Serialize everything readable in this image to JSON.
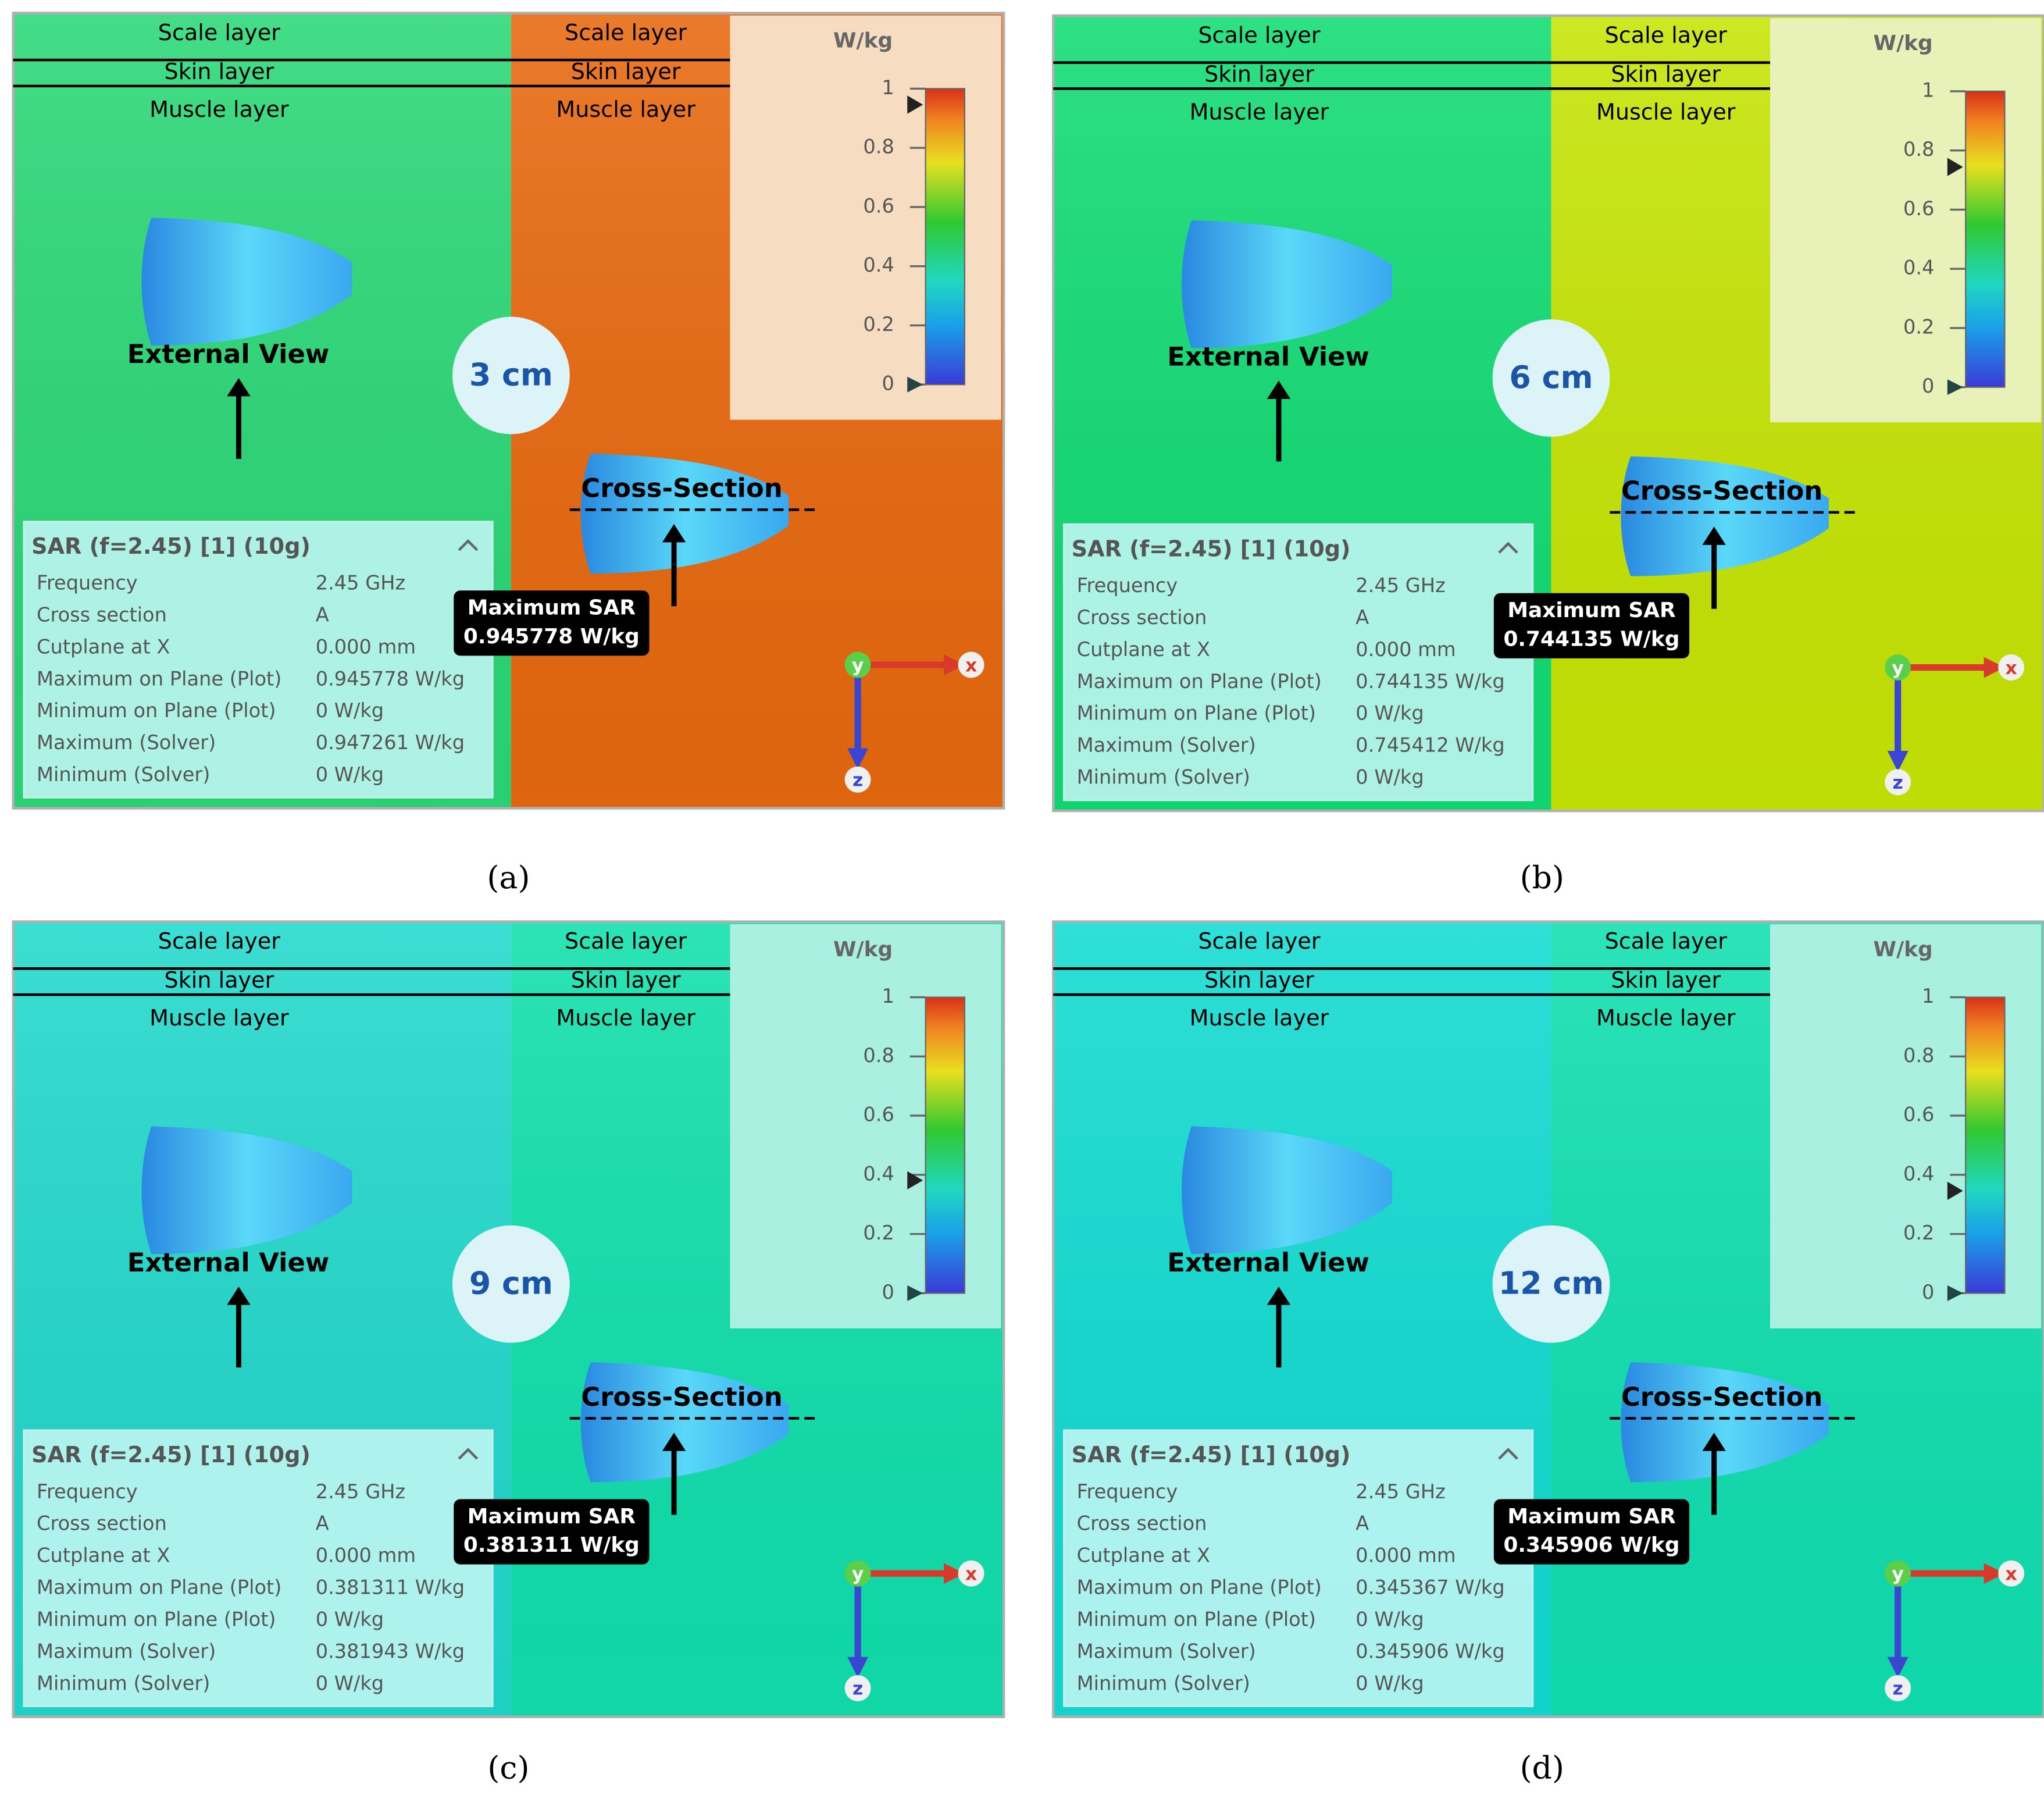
{
  "panels": [
    {
      "label": "(a)",
      "distance": "3 cm",
      "left_layers": [
        "Scale layer",
        "Skin layer",
        "Muscle layer"
      ],
      "right_layers": [
        "Scale layer",
        "Skin layer",
        "Muscle layer"
      ],
      "external_view": "External View",
      "cross_section": "Cross-Section",
      "colors": {
        "left": "#2bd877",
        "right": "#e8690f",
        "legend_bg": "#f6dcc0"
      },
      "colorbar": {
        "unit": "W/kg",
        "range": [
          0,
          1
        ],
        "ticks": [
          1,
          0.8,
          0.6,
          0.4,
          0.2,
          0
        ],
        "marker": 0.945778
      },
      "info": {
        "title": "SAR (f=2.45) [1] (10g)",
        "rows": [
          [
            "Frequency",
            "2.45 GHz"
          ],
          [
            "Cross section",
            "A"
          ],
          [
            "Cutplane at X",
            "0.000 mm"
          ],
          [
            "Maximum on Plane (Plot)",
            "0.945778 W/kg"
          ],
          [
            "Minimum on Plane (Plot)",
            "0 W/kg"
          ],
          [
            "Maximum (Solver)",
            "0.947261 W/kg"
          ],
          [
            "Minimum (Solver)",
            "0 W/kg"
          ]
        ]
      },
      "callout": {
        "title": "Maximum SAR",
        "value": "0.945778 W/kg"
      },
      "axes": [
        "y",
        "x",
        "z"
      ]
    },
    {
      "label": "(b)",
      "distance": "6 cm",
      "left_layers": [
        "Scale layer",
        "Skin layer",
        "Muscle layer"
      ],
      "right_layers": [
        "Scale layer",
        "Skin layer",
        "Muscle layer"
      ],
      "external_view": "External View",
      "cross_section": "Cross-Section",
      "colors": {
        "left": "#12dc74",
        "right": "#c6e505",
        "legend_bg": "#e8f2b8"
      },
      "colorbar": {
        "unit": "W/kg",
        "range": [
          0,
          1
        ],
        "ticks": [
          1,
          0.8,
          0.6,
          0.4,
          0.2,
          0
        ],
        "marker": 0.744135
      },
      "info": {
        "title": "SAR (f=2.45) [1] (10g)",
        "rows": [
          [
            "Frequency",
            "2.45 GHz"
          ],
          [
            "Cross section",
            "A"
          ],
          [
            "Cutplane at X",
            "0.000 mm"
          ],
          [
            "Maximum on Plane (Plot)",
            "0.744135 W/kg"
          ],
          [
            "Minimum on Plane (Plot)",
            "0 W/kg"
          ],
          [
            "Maximum (Solver)",
            "0.745412 W/kg"
          ],
          [
            "Minimum (Solver)",
            "0 W/kg"
          ]
        ]
      },
      "callout": {
        "title": "Maximum SAR",
        "value": "0.744135 W/kg"
      },
      "axes": [
        "y",
        "x",
        "z"
      ]
    },
    {
      "label": "(c)",
      "distance": "9 cm",
      "left_layers": [
        "Scale layer",
        "Skin layer",
        "Muscle layer"
      ],
      "right_layers": [
        "Scale layer",
        "Skin layer",
        "Muscle layer"
      ],
      "external_view": "External View",
      "cross_section": "Cross-Section",
      "colors": {
        "left": "#22d9cc",
        "right": "#10e0ac",
        "legend_bg": "#aaf0e0"
      },
      "colorbar": {
        "unit": "W/kg",
        "range": [
          0,
          1
        ],
        "ticks": [
          1,
          0.8,
          0.6,
          0.4,
          0.2,
          0
        ],
        "marker": 0.381311
      },
      "info": {
        "title": "SAR (f=2.45) [1] (10g)",
        "rows": [
          [
            "Frequency",
            "2.45 GHz"
          ],
          [
            "Cross section",
            "A"
          ],
          [
            "Cutplane at X",
            "0.000 mm"
          ],
          [
            "Maximum on Plane (Plot)",
            "0.381311 W/kg"
          ],
          [
            "Minimum on Plane (Plot)",
            "0 W/kg"
          ],
          [
            "Maximum (Solver)",
            "0.381943 W/kg"
          ],
          [
            "Minimum (Solver)",
            "0 W/kg"
          ]
        ]
      },
      "callout": {
        "title": "Maximum SAR",
        "value": "0.381311 W/kg"
      },
      "axes": [
        "y",
        "x",
        "z"
      ]
    },
    {
      "label": "(d)",
      "distance": "12 cm",
      "left_layers": [
        "Scale layer",
        "Skin layer",
        "Muscle layer"
      ],
      "right_layers": [
        "Scale layer",
        "Skin layer",
        "Muscle layer"
      ],
      "external_view": "External View",
      "cross_section": "Cross-Section",
      "colors": {
        "left": "#12dcd2",
        "right": "#10e0b0",
        "legend_bg": "#aaf0e0"
      },
      "colorbar": {
        "unit": "W/kg",
        "range": [
          0,
          1
        ],
        "ticks": [
          1,
          0.8,
          0.6,
          0.4,
          0.2,
          0
        ],
        "marker": 0.345906
      },
      "info": {
        "title": "SAR (f=2.45) [1] (10g)",
        "rows": [
          [
            "Frequency",
            "2.45 GHz"
          ],
          [
            "Cross section",
            "A"
          ],
          [
            "Cutplane at X",
            "0.000 mm"
          ],
          [
            "Maximum on Plane (Plot)",
            "0.345367 W/kg"
          ],
          [
            "Minimum on Plane (Plot)",
            "0 W/kg"
          ],
          [
            "Maximum (Solver)",
            "0.345906 W/kg"
          ],
          [
            "Minimum (Solver)",
            "0 W/kg"
          ]
        ]
      },
      "callout": {
        "title": "Maximum SAR",
        "value": "0.345906 W/kg"
      },
      "axes": [
        "y",
        "x",
        "z"
      ]
    }
  ]
}
